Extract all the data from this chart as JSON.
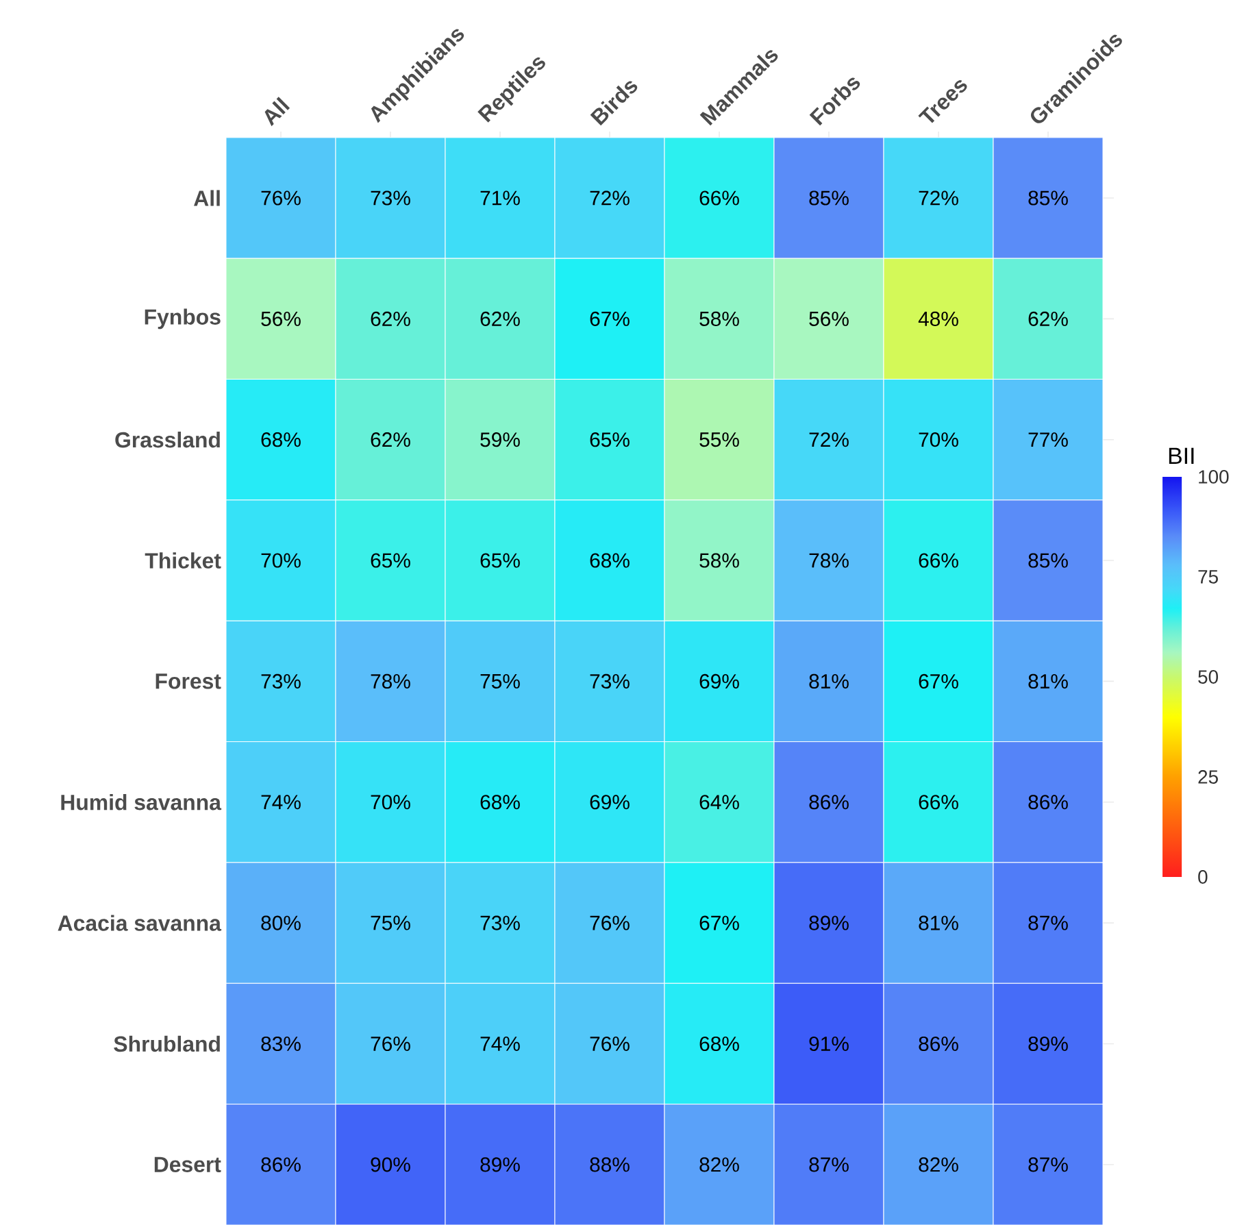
{
  "chart_data": {
    "type": "heatmap",
    "clabel": "BII",
    "grid": true,
    "categories": [
      "All",
      "Amphibians",
      "Reptiles",
      "Birds",
      "Mammals",
      "Forbs",
      "Trees",
      "Graminoids"
    ],
    "y_categories": [
      "All",
      "Fynbos",
      "Grassland",
      "Thicket",
      "Forest",
      "Humid savanna",
      "Acacia savanna",
      "Shrubland",
      "Desert"
    ],
    "cells": [
      [
        76,
        73,
        71,
        72,
        66,
        85,
        72,
        85
      ],
      [
        56,
        62,
        62,
        67,
        58,
        56,
        48,
        62
      ],
      [
        68,
        62,
        59,
        65,
        55,
        72,
        70,
        77
      ],
      [
        70,
        65,
        65,
        68,
        58,
        78,
        66,
        85
      ],
      [
        73,
        78,
        75,
        73,
        69,
        81,
        67,
        81
      ],
      [
        74,
        70,
        68,
        69,
        64,
        86,
        66,
        86
      ],
      [
        80,
        75,
        73,
        76,
        67,
        89,
        81,
        87
      ],
      [
        83,
        76,
        74,
        76,
        68,
        91,
        86,
        89
      ],
      [
        86,
        90,
        89,
        88,
        82,
        87,
        82,
        87
      ]
    ],
    "cell_labels": [
      [
        "76%",
        "73%",
        "71%",
        "72%",
        "66%",
        "85%",
        "72%",
        "85%"
      ],
      [
        "56%",
        "62%",
        "62%",
        "67%",
        "58%",
        "56%",
        "48%",
        "62%"
      ],
      [
        "68%",
        "62%",
        "59%",
        "65%",
        "55%",
        "72%",
        "70%",
        "77%"
      ],
      [
        "70%",
        "65%",
        "65%",
        "68%",
        "58%",
        "78%",
        "66%",
        "85%"
      ],
      [
        "73%",
        "78%",
        "75%",
        "73%",
        "69%",
        "81%",
        "67%",
        "81%"
      ],
      [
        "74%",
        "70%",
        "68%",
        "69%",
        "64%",
        "86%",
        "66%",
        "86%"
      ],
      [
        "80%",
        "75%",
        "73%",
        "76%",
        "67%",
        "89%",
        "81%",
        "87%"
      ],
      [
        "83%",
        "76%",
        "74%",
        "76%",
        "68%",
        "91%",
        "86%",
        "89%"
      ],
      [
        "86%",
        "90%",
        "89%",
        "88%",
        "82%",
        "87%",
        "82%",
        "87%"
      ]
    ],
    "clim": [
      0,
      100
    ],
    "cticks": [
      0,
      25,
      50,
      75,
      100
    ]
  }
}
